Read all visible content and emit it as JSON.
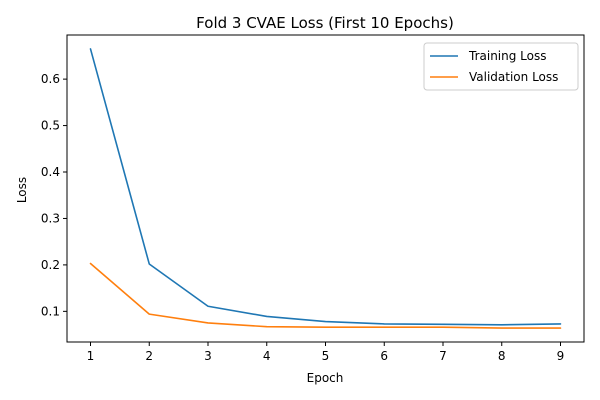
{
  "chart_data": {
    "type": "line",
    "title": "Fold 3 CVAE Loss (First 10 Epochs)",
    "xlabel": "Epoch",
    "ylabel": "Loss",
    "x": [
      1,
      2,
      3,
      4,
      5,
      6,
      7,
      8,
      9
    ],
    "xticks": [
      1,
      2,
      3,
      4,
      5,
      6,
      7,
      8,
      9
    ],
    "yticks": [
      0.1,
      0.2,
      0.3,
      0.4,
      0.5,
      0.6
    ],
    "xlim": [
      0.6,
      9.4
    ],
    "ylim": [
      0.034,
      0.695
    ],
    "grid": false,
    "legend_position": "top-right",
    "series": [
      {
        "name": "Training Loss",
        "color": "#1f77b4",
        "values": [
          0.665,
          0.202,
          0.111,
          0.089,
          0.078,
          0.073,
          0.072,
          0.071,
          0.073
        ]
      },
      {
        "name": "Validation Loss",
        "color": "#ff7f0e",
        "values": [
          0.203,
          0.094,
          0.075,
          0.067,
          0.066,
          0.066,
          0.066,
          0.064,
          0.064
        ]
      }
    ]
  }
}
